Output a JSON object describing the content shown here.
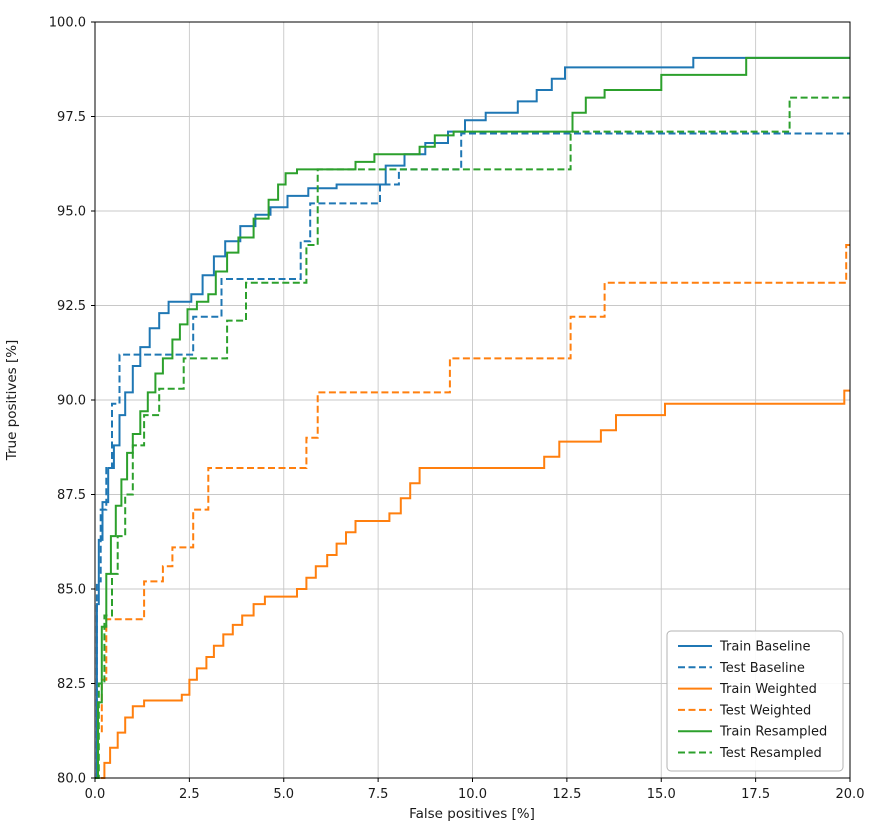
{
  "figure": {
    "background": "#ffffff"
  },
  "chart_data": {
    "type": "line",
    "step": "post",
    "title": "",
    "xlabel": "False positives [%]",
    "ylabel": "True positives [%]",
    "xlim": [
      0,
      20
    ],
    "ylim": [
      80,
      100
    ],
    "xticks": [
      0,
      2.5,
      5,
      7.5,
      10,
      12.5,
      15,
      17.5,
      20
    ],
    "yticks": [
      80,
      82.5,
      85,
      87.5,
      90,
      92.5,
      95,
      97.5,
      100
    ],
    "xtick_labels": [
      "0.0",
      "2.5",
      "5.0",
      "7.5",
      "10.0",
      "12.5",
      "15.0",
      "17.5",
      "20.0"
    ],
    "ytick_labels": [
      "80.0",
      "82.5",
      "85.0",
      "87.5",
      "90.0",
      "92.5",
      "95.0",
      "97.5",
      "100.0"
    ],
    "grid": true,
    "grid_color": "#c8c8c8",
    "spine_color": "#000000",
    "legend_position": "lower right",
    "series": [
      {
        "name": "Train Baseline",
        "color": "#1f77b4",
        "dash": "solid",
        "points": [
          [
            0,
            80
          ],
          [
            0.05,
            84.6
          ],
          [
            0.1,
            86.3
          ],
          [
            0.2,
            87.3
          ],
          [
            0.35,
            88.2
          ],
          [
            0.5,
            88.8
          ],
          [
            0.65,
            89.6
          ],
          [
            0.8,
            90.2
          ],
          [
            1.0,
            90.9
          ],
          [
            1.2,
            91.4
          ],
          [
            1.45,
            91.9
          ],
          [
            1.7,
            92.3
          ],
          [
            1.95,
            92.6
          ],
          [
            2.55,
            92.8
          ],
          [
            2.85,
            93.3
          ],
          [
            3.15,
            93.8
          ],
          [
            3.45,
            94.2
          ],
          [
            3.85,
            94.6
          ],
          [
            4.25,
            94.9
          ],
          [
            4.65,
            95.1
          ],
          [
            5.1,
            95.4
          ],
          [
            5.65,
            95.6
          ],
          [
            6.4,
            95.7
          ],
          [
            7.7,
            96.2
          ],
          [
            8.2,
            96.5
          ],
          [
            8.75,
            96.8
          ],
          [
            9.35,
            97.1
          ],
          [
            9.8,
            97.4
          ],
          [
            10.35,
            97.6
          ],
          [
            11.2,
            97.9
          ],
          [
            11.7,
            98.2
          ],
          [
            12.1,
            98.5
          ],
          [
            12.45,
            98.8
          ],
          [
            15.85,
            99.05
          ],
          [
            20,
            99.05
          ]
        ]
      },
      {
        "name": "Test Baseline",
        "color": "#1f77b4",
        "dash": "dashed",
        "points": [
          [
            0,
            80
          ],
          [
            0.05,
            85.2
          ],
          [
            0.15,
            87.1
          ],
          [
            0.3,
            88.2
          ],
          [
            0.45,
            89.9
          ],
          [
            0.65,
            91.2
          ],
          [
            2.6,
            92.2
          ],
          [
            3.35,
            93.2
          ],
          [
            5.45,
            94.2
          ],
          [
            5.7,
            95.2
          ],
          [
            7.55,
            95.7
          ],
          [
            8.05,
            96.1
          ],
          [
            9.7,
            97.05
          ],
          [
            20,
            97.05
          ]
        ]
      },
      {
        "name": "Train Weighted",
        "color": "#ff7f0e",
        "dash": "solid",
        "points": [
          [
            0.15,
            80
          ],
          [
            0.25,
            80.4
          ],
          [
            0.4,
            80.8
          ],
          [
            0.6,
            81.2
          ],
          [
            0.8,
            81.6
          ],
          [
            1.0,
            81.9
          ],
          [
            1.3,
            82.05
          ],
          [
            2.3,
            82.2
          ],
          [
            2.5,
            82.6
          ],
          [
            2.7,
            82.9
          ],
          [
            2.95,
            83.2
          ],
          [
            3.15,
            83.5
          ],
          [
            3.4,
            83.8
          ],
          [
            3.65,
            84.05
          ],
          [
            3.9,
            84.3
          ],
          [
            4.2,
            84.6
          ],
          [
            4.5,
            84.8
          ],
          [
            5.35,
            85.0
          ],
          [
            5.6,
            85.3
          ],
          [
            5.85,
            85.6
          ],
          [
            6.15,
            85.9
          ],
          [
            6.4,
            86.2
          ],
          [
            6.65,
            86.5
          ],
          [
            6.9,
            86.8
          ],
          [
            7.8,
            87.0
          ],
          [
            8.1,
            87.4
          ],
          [
            8.35,
            87.8
          ],
          [
            8.6,
            88.2
          ],
          [
            11.9,
            88.5
          ],
          [
            12.3,
            88.9
          ],
          [
            13.4,
            89.2
          ],
          [
            13.8,
            89.6
          ],
          [
            15.1,
            89.9
          ],
          [
            19.85,
            90.25
          ],
          [
            20,
            90.25
          ]
        ]
      },
      {
        "name": "Test Weighted",
        "color": "#ff7f0e",
        "dash": "dashed",
        "points": [
          [
            0,
            80
          ],
          [
            0.08,
            81.2
          ],
          [
            0.18,
            82.6
          ],
          [
            0.3,
            84.2
          ],
          [
            1.3,
            85.2
          ],
          [
            1.8,
            85.6
          ],
          [
            2.05,
            86.1
          ],
          [
            2.6,
            87.1
          ],
          [
            3.0,
            88.2
          ],
          [
            5.6,
            89.0
          ],
          [
            5.9,
            90.2
          ],
          [
            9.4,
            91.1
          ],
          [
            12.6,
            92.2
          ],
          [
            13.5,
            93.1
          ],
          [
            19.9,
            94.1
          ],
          [
            20,
            94.1
          ]
        ]
      },
      {
        "name": "Train Resampled",
        "color": "#2ca02c",
        "dash": "solid",
        "points": [
          [
            0,
            80
          ],
          [
            0.08,
            82.0
          ],
          [
            0.18,
            84.0
          ],
          [
            0.3,
            85.4
          ],
          [
            0.42,
            86.4
          ],
          [
            0.55,
            87.2
          ],
          [
            0.7,
            87.9
          ],
          [
            0.85,
            88.6
          ],
          [
            1.0,
            89.1
          ],
          [
            1.2,
            89.7
          ],
          [
            1.4,
            90.2
          ],
          [
            1.6,
            90.7
          ],
          [
            1.8,
            91.1
          ],
          [
            2.05,
            91.6
          ],
          [
            2.25,
            92.0
          ],
          [
            2.45,
            92.4
          ],
          [
            2.7,
            92.6
          ],
          [
            3.0,
            92.8
          ],
          [
            3.2,
            93.4
          ],
          [
            3.5,
            93.9
          ],
          [
            3.8,
            94.3
          ],
          [
            4.2,
            94.8
          ],
          [
            4.6,
            95.3
          ],
          [
            4.85,
            95.7
          ],
          [
            5.05,
            96.0
          ],
          [
            5.35,
            96.1
          ],
          [
            6.9,
            96.3
          ],
          [
            7.4,
            96.5
          ],
          [
            8.6,
            96.7
          ],
          [
            9.0,
            97.0
          ],
          [
            9.5,
            97.1
          ],
          [
            12.65,
            97.6
          ],
          [
            13.0,
            98.0
          ],
          [
            13.5,
            98.2
          ],
          [
            15.0,
            98.6
          ],
          [
            17.25,
            99.05
          ],
          [
            20,
            99.05
          ]
        ]
      },
      {
        "name": "Test Resampled",
        "color": "#2ca02c",
        "dash": "dashed",
        "points": [
          [
            0,
            80
          ],
          [
            0.1,
            82.5
          ],
          [
            0.25,
            84.3
          ],
          [
            0.45,
            85.4
          ],
          [
            0.6,
            86.4
          ],
          [
            0.8,
            87.5
          ],
          [
            1.0,
            88.8
          ],
          [
            1.3,
            89.6
          ],
          [
            1.7,
            90.3
          ],
          [
            2.35,
            91.1
          ],
          [
            3.5,
            92.1
          ],
          [
            4.0,
            93.1
          ],
          [
            5.6,
            94.1
          ],
          [
            5.9,
            96.1
          ],
          [
            12.6,
            97.1
          ],
          [
            18.4,
            98.0
          ],
          [
            20,
            98.0
          ]
        ]
      }
    ]
  }
}
